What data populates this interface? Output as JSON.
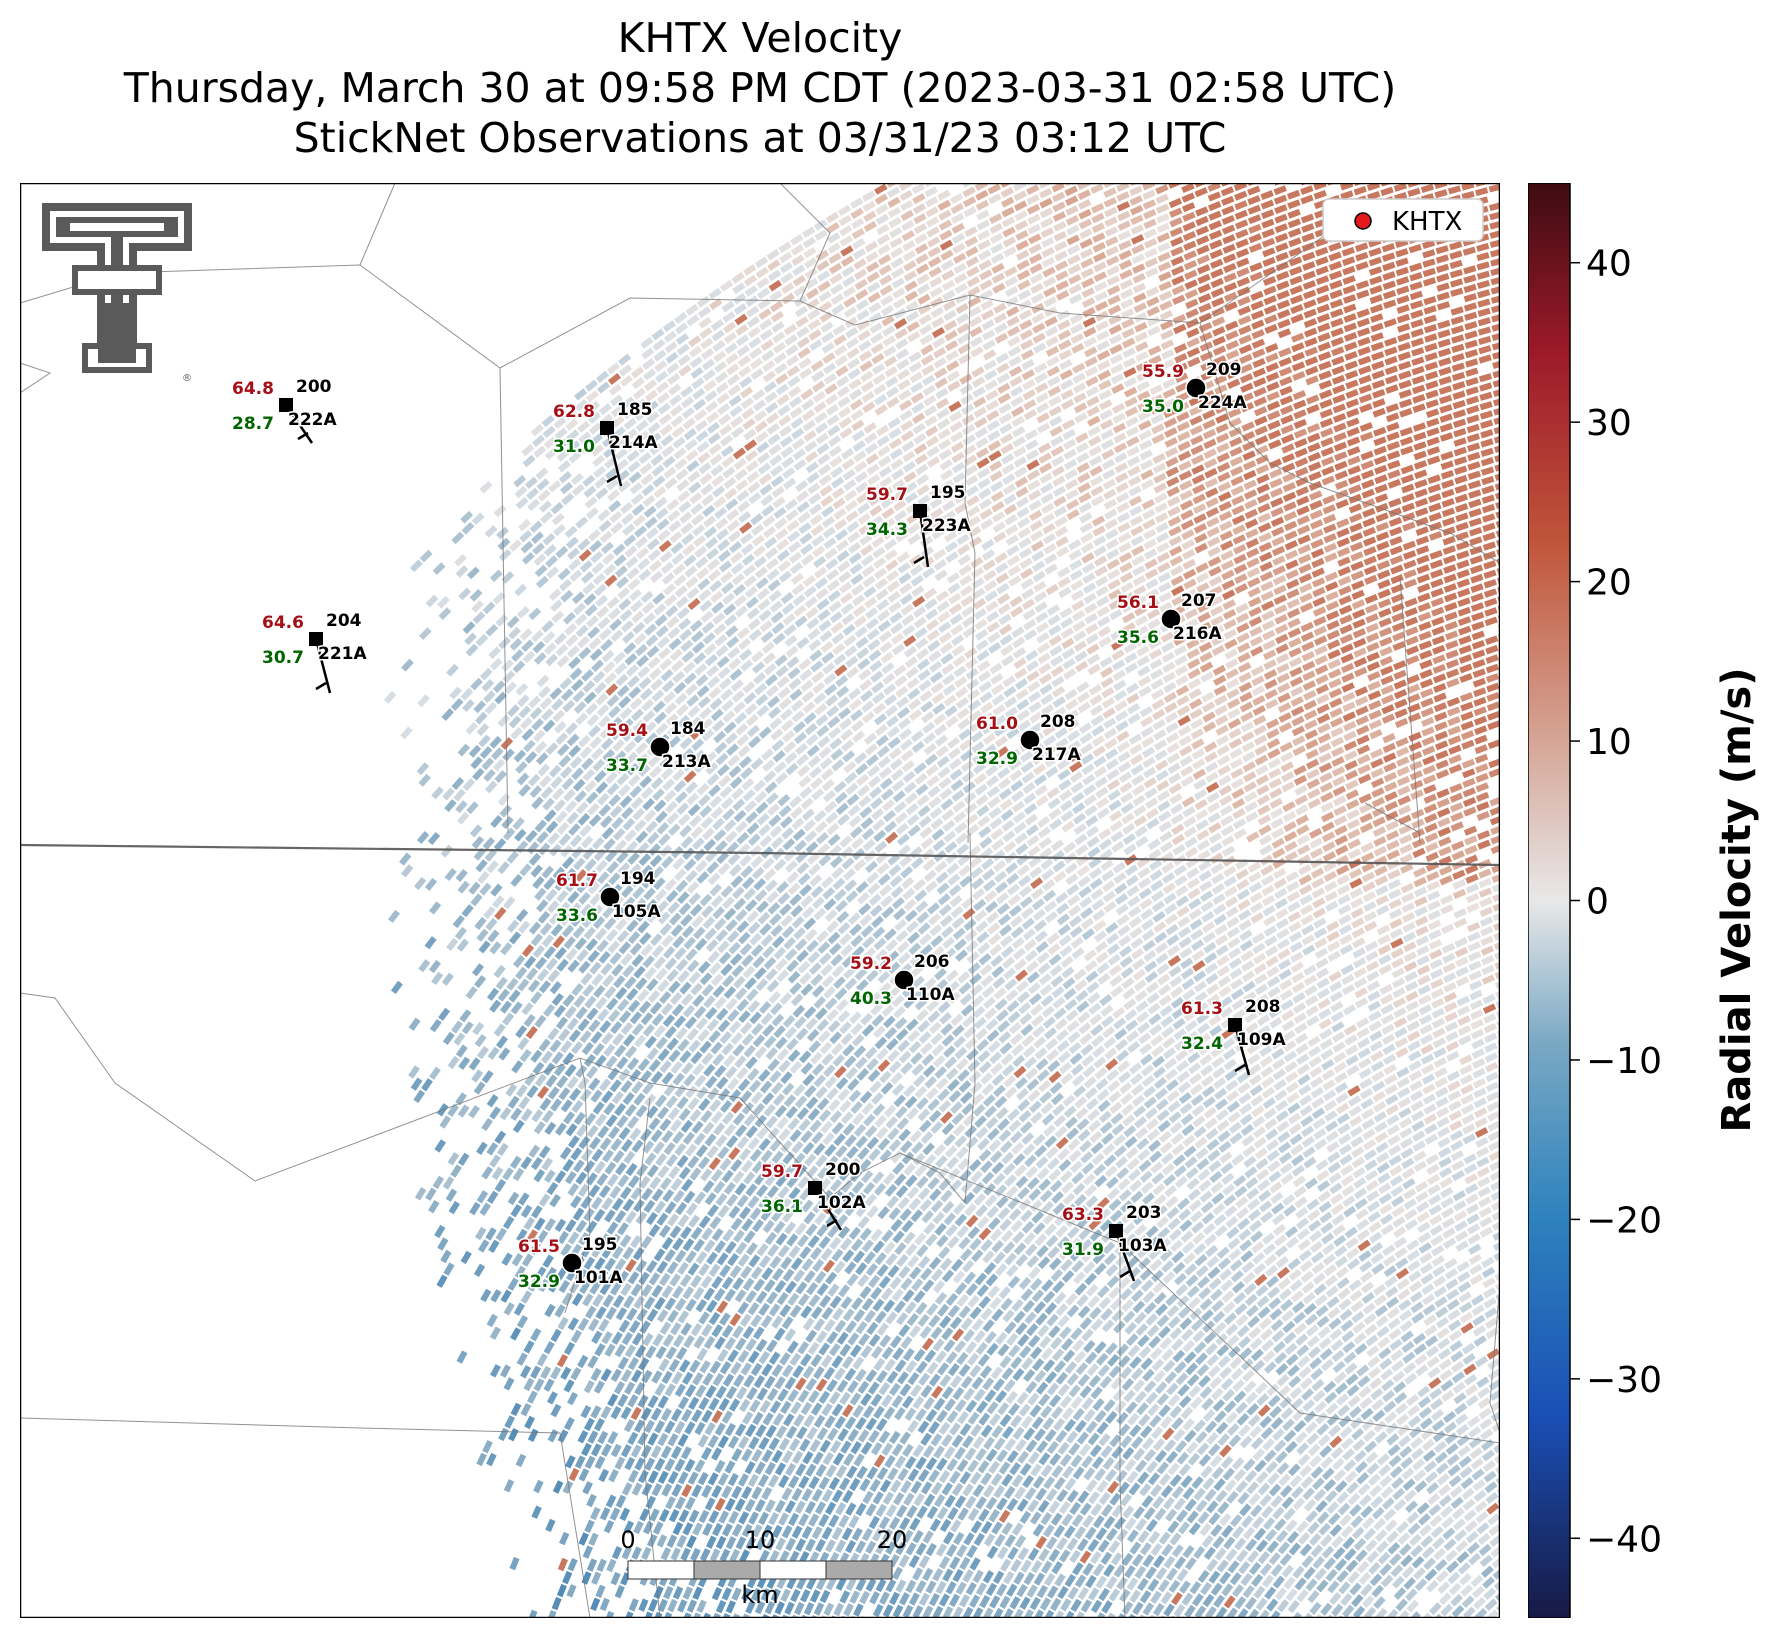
{
  "title": {
    "line1": "KHTX Velocity",
    "line2": "Thursday, March 30 at 09:58 PM CDT (2023-03-31 02:58 UTC)",
    "line3": "StickNet Observations at 03/31/23 03:12 UTC"
  },
  "legend": {
    "label": "KHTX",
    "marker_color": "#e31a1c"
  },
  "logo": {
    "letters": "TT",
    "mark": "®"
  },
  "colorbar": {
    "label": "Radial Velocity (m/s)",
    "ticks": [
      "40",
      "30",
      "20",
      "10",
      "0",
      "−10",
      "−20",
      "−30",
      "−40"
    ],
    "range": [
      -45,
      45
    ],
    "colors": [
      "#171a44",
      "#1a4fb5",
      "#2e82bd",
      "#79a8c4",
      "#e8e8e8",
      "#d4a090",
      "#c0553a",
      "#9e1a2a",
      "#3e0c12"
    ]
  },
  "scalebar": {
    "ticks": [
      "0",
      "10",
      "20"
    ],
    "unit": "km"
  },
  "stations": [
    {
      "id": "222A",
      "gust": "64.8",
      "dir": "200",
      "speed": "28.7",
      "type": "square"
    },
    {
      "id": "214A",
      "gust": "62.8",
      "dir": "185",
      "speed": "31.0",
      "type": "square"
    },
    {
      "id": "223A",
      "gust": "59.7",
      "dir": "195",
      "speed": "34.3",
      "type": "square"
    },
    {
      "id": "224A",
      "gust": "55.9",
      "dir": "209",
      "speed": "35.0",
      "type": "circle"
    },
    {
      "id": "221A",
      "gust": "64.6",
      "dir": "204",
      "speed": "30.7",
      "type": "square"
    },
    {
      "id": "216A",
      "gust": "56.1",
      "dir": "207",
      "speed": "35.6",
      "type": "circle"
    },
    {
      "id": "213A",
      "gust": "59.4",
      "dir": "184",
      "speed": "33.7",
      "type": "circle"
    },
    {
      "id": "217A",
      "gust": "61.0",
      "dir": "208",
      "speed": "32.9",
      "type": "circle"
    },
    {
      "id": "105A",
      "gust": "61.7",
      "dir": "194",
      "speed": "33.6",
      "type": "circle"
    },
    {
      "id": "110A",
      "gust": "59.2",
      "dir": "206",
      "speed": "40.3",
      "type": "circle"
    },
    {
      "id": "109A",
      "gust": "61.3",
      "dir": "208",
      "speed": "32.4",
      "type": "square"
    },
    {
      "id": "102A",
      "gust": "59.7",
      "dir": "200",
      "speed": "36.1",
      "type": "square"
    },
    {
      "id": "103A",
      "gust": "63.3",
      "dir": "203",
      "speed": "31.9",
      "type": "square"
    },
    {
      "id": "101A",
      "gust": "61.5",
      "dir": "195",
      "speed": "32.9",
      "type": "circle"
    }
  ]
}
